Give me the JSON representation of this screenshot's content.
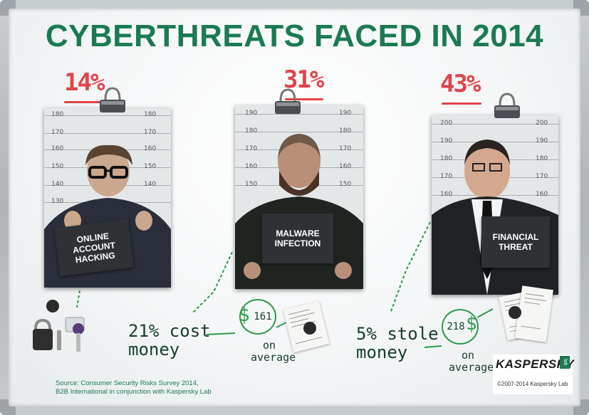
{
  "title": "CYBERTHREATS FACED IN 2014",
  "colors": {
    "brand_green": "#1a7a52",
    "percent_red": "#e0454a",
    "sign_dark": "#2f3234"
  },
  "suspects": [
    {
      "percent": "14%",
      "sign": [
        "ONLINE",
        "ACCOUNT",
        "HACKING"
      ],
      "ruler_left": [
        "180",
        "170",
        "160",
        "150",
        "140",
        "130"
      ],
      "ruler_right": [
        "180",
        "170",
        "160",
        "150",
        "140"
      ]
    },
    {
      "percent": "31%",
      "sign": [
        "MALWARE",
        "INFECTION"
      ],
      "ruler_left": [
        "190",
        "180",
        "170",
        "160",
        "150"
      ],
      "ruler_right": [
        "190",
        "180",
        "170",
        "160",
        "150"
      ]
    },
    {
      "percent": "43%",
      "sign": [
        "FINANCIAL",
        "THREAT"
      ],
      "ruler_left": [
        "200",
        "190",
        "180",
        "170",
        "160"
      ],
      "ruler_right": [
        "200",
        "190",
        "180",
        "170",
        "160"
      ]
    }
  ],
  "notes": [
    {
      "line1": "21% cost",
      "line2": "money",
      "currency": "$",
      "amount": "161",
      "avg1": "on",
      "avg2": "average"
    },
    {
      "line1": "5% stole",
      "line2": "money",
      "currency": "$",
      "amount": "218",
      "avg1": "on",
      "avg2": "average"
    }
  ],
  "source": {
    "line1": "Source: Consumer Security Risks Survey 2014,",
    "line2": "B2B International in conjunction with Kaspersky Lab"
  },
  "brand": {
    "name": "KASPERSKY",
    "lab": "lab",
    "copyright": "©2007-2014 Kaspersky Lab"
  }
}
